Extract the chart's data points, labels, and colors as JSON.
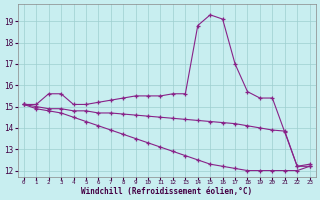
{
  "xlabel": "Windchill (Refroidissement éolien,°C)",
  "bg_color": "#c8eef0",
  "line_color": "#882288",
  "grid_color": "#9ecfcf",
  "hours": [
    0,
    1,
    2,
    3,
    4,
    5,
    6,
    7,
    8,
    9,
    10,
    11,
    12,
    13,
    14,
    15,
    16,
    17,
    18,
    19,
    20,
    21,
    22,
    23
  ],
  "series1": [
    15.1,
    15.1,
    15.6,
    15.6,
    15.1,
    15.1,
    15.2,
    15.3,
    15.4,
    15.5,
    15.5,
    15.5,
    15.6,
    15.6,
    18.8,
    19.3,
    19.1,
    17.0,
    15.7,
    15.4,
    15.4,
    13.8,
    12.2,
    12.3
  ],
  "series2": [
    15.1,
    15.0,
    14.9,
    14.9,
    14.8,
    14.8,
    14.7,
    14.7,
    14.65,
    14.6,
    14.55,
    14.5,
    14.45,
    14.4,
    14.35,
    14.3,
    14.25,
    14.2,
    14.1,
    14.0,
    13.9,
    13.85,
    12.2,
    12.2
  ],
  "series3": [
    15.1,
    14.9,
    14.8,
    14.7,
    14.5,
    14.3,
    14.1,
    13.9,
    13.7,
    13.5,
    13.3,
    13.1,
    12.9,
    12.7,
    12.5,
    12.3,
    12.2,
    12.1,
    12.0,
    12.0,
    12.0,
    12.0,
    12.0,
    12.2
  ],
  "ylim": [
    11.7,
    19.8
  ],
  "yticks": [
    12,
    13,
    14,
    15,
    16,
    17,
    18,
    19
  ],
  "xlim": [
    -0.5,
    23.5
  ],
  "xtick_labels": [
    "0",
    "1",
    "2",
    "3",
    "4",
    "5",
    "6",
    "7",
    "8",
    "9",
    "10",
    "11",
    "12",
    "13",
    "14",
    "15",
    "16",
    "17",
    "18",
    "19",
    "20",
    "21",
    "22",
    "23"
  ]
}
